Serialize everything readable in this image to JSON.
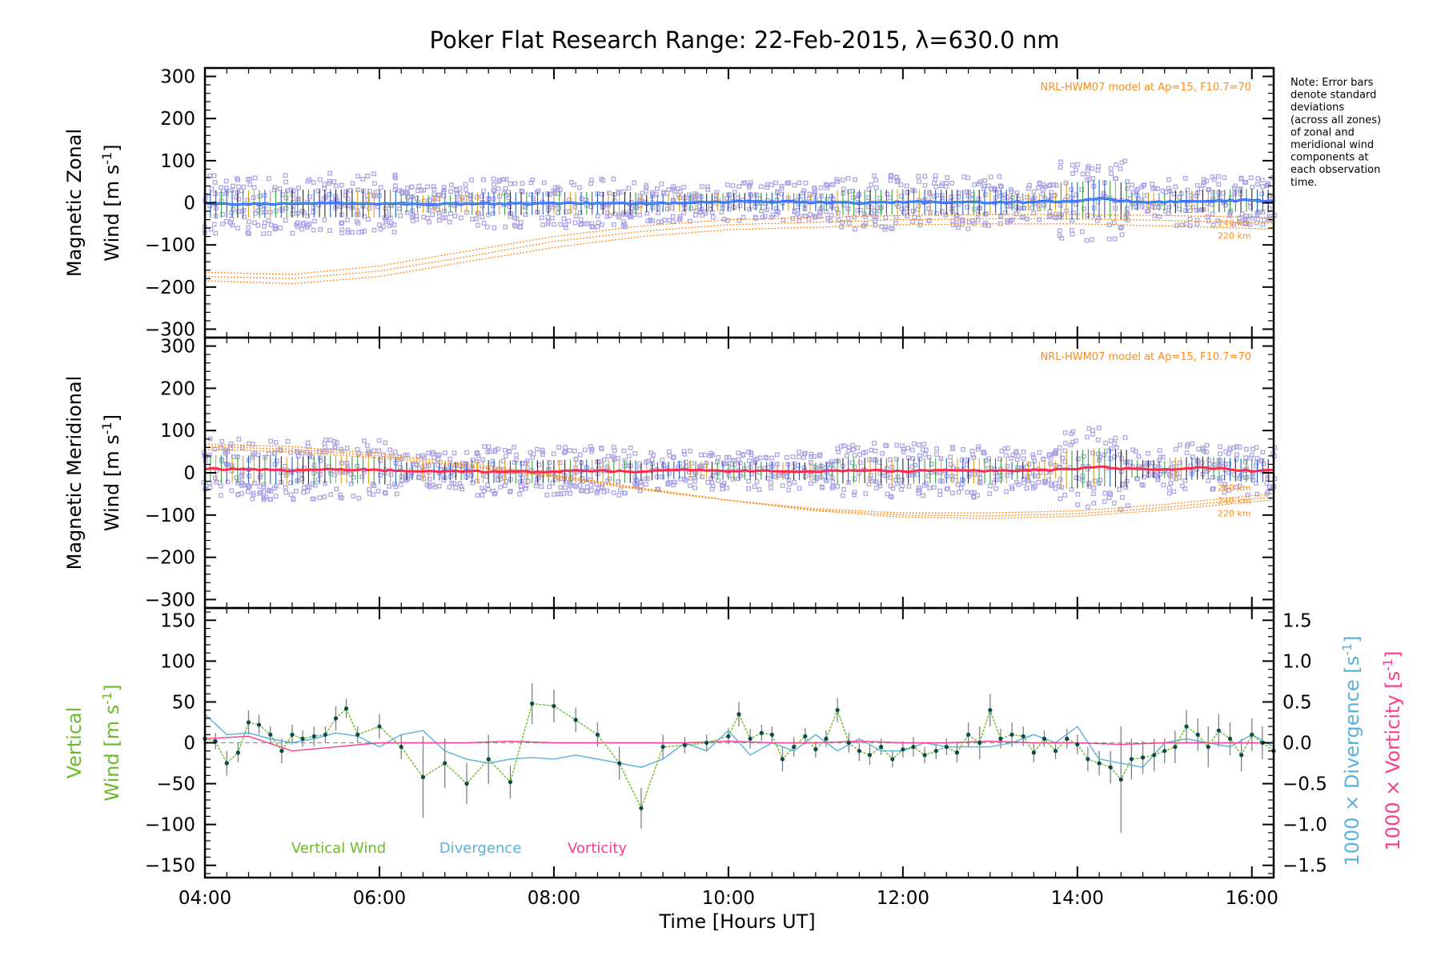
{
  "chart_data": {
    "title": "Poker Flat Research Range: 22-Feb-2015, λ=630.0 nm",
    "xlabel": "Time [Hours UT]",
    "x_ticks": [
      "04:00",
      "06:00",
      "08:00",
      "10:00",
      "12:00",
      "14:00",
      "16:00"
    ],
    "xlim": [
      4.0,
      16.25
    ],
    "note": [
      "Note: Error bars",
      "denote standard",
      "deviations",
      "(across all zones)",
      "of zonal and",
      "meridional wind",
      "components at",
      "each observation",
      "time."
    ],
    "colors": {
      "zonal": "#1f4fff",
      "zonal_light": "#4aa8ff",
      "meridional": "#ff2a4a",
      "model": "#ff8c1a",
      "zone_points": "#a9a2e3",
      "vertical": "#6bbb2a",
      "divergence": "#58b1da",
      "vorticity": "#ff3a8c",
      "error_bar": "#808080"
    },
    "panels": [
      {
        "id": "zonal",
        "type": "scatter",
        "ylabel_line1": "Magnetic Zonal",
        "ylabel_line2": "Wind [m s",
        "ylabel_sup": "-1",
        "ylabel_close": "]",
        "ylim": [
          -320,
          320
        ],
        "y_ticks": [
          300,
          200,
          100,
          0,
          -100,
          -200,
          -300
        ],
        "y_tick_labels": [
          "300",
          "200",
          "100",
          "0",
          "−100",
          "−200",
          "−300"
        ],
        "model_label": "NRL-HWM07 model at Ap=15, F10.7=70",
        "model_alt_labels": [
          "240 km",
          "220 km"
        ],
        "model_curves": [
          {
            "x": [
              4.0,
              5.0,
              6.0,
              7.0,
              8.0,
              9.0,
              10.0,
              11.0,
              12.0,
              13.0,
              14.0,
              15.0,
              16.2
            ],
            "y": [
              -165,
              -170,
              -150,
              -115,
              -80,
              -55,
              -40,
              -35,
              -30,
              -28,
              -28,
              -30,
              -35
            ]
          },
          {
            "x": [
              4.0,
              5.0,
              6.0,
              7.0,
              8.0,
              9.0,
              10.0,
              11.0,
              12.0,
              13.0,
              14.0,
              15.0,
              16.2
            ],
            "y": [
              -175,
              -180,
              -162,
              -128,
              -92,
              -68,
              -52,
              -46,
              -40,
              -38,
              -38,
              -42,
              -48
            ]
          },
          {
            "x": [
              4.0,
              5.0,
              6.0,
              7.0,
              8.0,
              9.0,
              10.0,
              11.0,
              12.0,
              13.0,
              14.0,
              15.0,
              16.2
            ],
            "y": [
              -185,
              -192,
              -175,
              -140,
              -106,
              -80,
              -64,
              -58,
              -52,
              -50,
              -50,
              -55,
              -62
            ]
          }
        ],
        "series": [
          {
            "name": "",
            "x": [
              4.0,
              4.5,
              5.0,
              5.5,
              6.0,
              6.5,
              7.0,
              7.5,
              8.0,
              8.5,
              9.0,
              9.5,
              10.0,
              10.5,
              11.0,
              11.5,
              12.0,
              12.5,
              13.0,
              13.5,
              14.0,
              14.25,
              14.5,
              15.0,
              15.5,
              16.0,
              16.25
            ],
            "y": [
              -2,
              -3,
              -2,
              -1,
              -2,
              -3,
              -2,
              -2,
              -1,
              -1,
              -2,
              0,
              2,
              3,
              1,
              0,
              2,
              1,
              1,
              2,
              4,
              10,
              4,
              2,
              4,
              6,
              3
            ]
          }
        ]
      },
      {
        "id": "meridional",
        "type": "scatter",
        "ylabel_line1": "Magnetic Meridional",
        "ylabel_line2": "Wind [m s",
        "ylabel_sup": "-1",
        "ylabel_close": "]",
        "ylim": [
          -320,
          320
        ],
        "y_ticks": [
          300,
          200,
          100,
          0,
          -100,
          -200,
          -300
        ],
        "y_tick_labels": [
          "300",
          "200",
          "100",
          "0",
          "−100",
          "−200",
          "−300"
        ],
        "model_label": "NRL-HWM07 model at Ap=15, F10.7=70",
        "model_alt_labels": [
          "260 km",
          "240 km",
          "220 km"
        ],
        "model_curves": [
          {
            "x": [
              4.0,
              5.0,
              6.0,
              7.0,
              8.0,
              9.0,
              10.0,
              11.0,
              12.0,
              13.0,
              14.0,
              15.0,
              16.2
            ],
            "y": [
              55,
              50,
              35,
              15,
              -10,
              -40,
              -65,
              -85,
              -95,
              -95,
              -90,
              -75,
              -50
            ]
          },
          {
            "x": [
              4.0,
              5.0,
              6.0,
              7.0,
              8.0,
              9.0,
              10.0,
              11.0,
              12.0,
              13.0,
              14.0,
              15.0,
              16.2
            ],
            "y": [
              62,
              56,
              40,
              18,
              -8,
              -38,
              -65,
              -88,
              -100,
              -102,
              -97,
              -82,
              -58
            ]
          },
          {
            "x": [
              4.0,
              5.0,
              6.0,
              7.0,
              8.0,
              9.0,
              10.0,
              11.0,
              12.0,
              13.0,
              14.0,
              15.0,
              16.2
            ],
            "y": [
              68,
              62,
              45,
              22,
              -5,
              -36,
              -65,
              -90,
              -105,
              -108,
              -103,
              -88,
              -65
            ]
          }
        ],
        "series": [
          {
            "name": "",
            "x": [
              4.0,
              4.5,
              5.0,
              5.5,
              6.0,
              6.5,
              7.0,
              7.5,
              8.0,
              8.5,
              9.0,
              9.5,
              10.0,
              10.5,
              11.0,
              11.5,
              12.0,
              12.5,
              13.0,
              13.5,
              14.0,
              14.25,
              14.5,
              15.0,
              15.5,
              16.0,
              16.25
            ],
            "y": [
              10,
              8,
              5,
              8,
              6,
              3,
              4,
              2,
              3,
              5,
              2,
              8,
              4,
              5,
              3,
              6,
              4,
              5,
              4,
              6,
              8,
              14,
              10,
              8,
              12,
              4,
              6
            ]
          }
        ]
      },
      {
        "id": "vertical",
        "type": "line",
        "ylabel_line1": "Vertical",
        "ylabel_line2": "Wind [m s",
        "ylabel_sup": "-1",
        "ylabel_close": "]",
        "ylim": [
          -165,
          165
        ],
        "y_ticks": [
          150,
          100,
          50,
          0,
          -50,
          -100,
          -150
        ],
        "y_tick_labels": [
          "150",
          "100",
          "50",
          "0",
          "−50",
          "−100",
          "−150"
        ],
        "ylim_right": [
          -1.65,
          1.65
        ],
        "y_ticks_right": [
          1.5,
          1.0,
          0.5,
          0.0,
          -0.5,
          -1.0,
          -1.5
        ],
        "y_tick_labels_right": [
          "1.5",
          "1.0",
          "0.5",
          "0.0",
          "−0.5",
          "−1.0",
          "−1.5"
        ],
        "ylabel_right_1": "1000 × Divergence [s",
        "ylabel_right_2": "1000 × Vorticity [s",
        "ylabel_right_sup": "-1",
        "ylabel_right_close": "]",
        "legend": [
          "Vertical Wind",
          "Divergence",
          "Vorticity"
        ],
        "vertical_wind": {
          "x": [
            4.0,
            4.12,
            4.25,
            4.38,
            4.5,
            4.62,
            4.75,
            4.88,
            5.0,
            5.12,
            5.25,
            5.38,
            5.5,
            5.62,
            5.75,
            6.0,
            6.25,
            6.5,
            6.75,
            7.0,
            7.25,
            7.5,
            7.75,
            8.0,
            8.25,
            8.5,
            8.75,
            9.0,
            9.25,
            9.5,
            9.75,
            10.0,
            10.12,
            10.25,
            10.38,
            10.5,
            10.62,
            10.75,
            10.88,
            11.0,
            11.12,
            11.25,
            11.38,
            11.5,
            11.62,
            11.75,
            11.88,
            12.0,
            12.12,
            12.25,
            12.38,
            12.5,
            12.62,
            12.75,
            12.88,
            13.0,
            13.12,
            13.25,
            13.38,
            13.5,
            13.62,
            13.75,
            13.88,
            14.0,
            14.12,
            14.25,
            14.38,
            14.5,
            14.62,
            14.75,
            14.88,
            15.0,
            15.12,
            15.25,
            15.38,
            15.5,
            15.62,
            15.75,
            15.88,
            16.0,
            16.12,
            16.25
          ],
          "y": [
            5,
            2,
            -25,
            -12,
            25,
            22,
            10,
            -10,
            10,
            5,
            8,
            10,
            30,
            42,
            10,
            20,
            -5,
            -42,
            -25,
            -50,
            -20,
            -48,
            48,
            45,
            28,
            10,
            -25,
            -80,
            -5,
            -3,
            0,
            8,
            35,
            5,
            12,
            10,
            -20,
            -5,
            8,
            -8,
            5,
            40,
            0,
            -10,
            -15,
            -5,
            -20,
            -8,
            -5,
            -15,
            -10,
            -5,
            -12,
            10,
            0,
            40,
            5,
            10,
            8,
            -12,
            5,
            -10,
            5,
            -2,
            -20,
            -25,
            -30,
            -45,
            -20,
            -18,
            -15,
            -10,
            -5,
            20,
            10,
            -5,
            15,
            5,
            -15,
            10,
            0,
            -10
          ],
          "err": [
            15,
            10,
            15,
            12,
            15,
            12,
            10,
            15,
            12,
            10,
            12,
            10,
            15,
            12,
            10,
            15,
            15,
            50,
            30,
            25,
            30,
            20,
            25,
            20,
            15,
            15,
            20,
            25,
            15,
            10,
            10,
            10,
            15,
            12,
            10,
            10,
            15,
            12,
            10,
            10,
            10,
            15,
            12,
            12,
            12,
            10,
            10,
            10,
            12,
            10,
            10,
            10,
            12,
            15,
            20,
            20,
            12,
            15,
            12,
            12,
            10,
            10,
            12,
            12,
            15,
            15,
            20,
            65,
            25,
            20,
            20,
            15,
            20,
            20,
            20,
            25,
            20,
            20,
            20,
            20,
            20,
            15
          ]
        },
        "divergence": {
          "x": [
            4.0,
            4.25,
            4.5,
            4.75,
            5.0,
            5.25,
            5.5,
            5.75,
            6.0,
            6.25,
            6.5,
            6.75,
            7.0,
            7.25,
            7.5,
            7.75,
            8.0,
            8.25,
            8.5,
            8.75,
            9.0,
            9.25,
            9.5,
            9.75,
            10.0,
            10.25,
            10.5,
            10.75,
            11.0,
            11.25,
            11.5,
            11.75,
            12.0,
            12.25,
            12.5,
            12.75,
            13.0,
            13.25,
            13.5,
            13.75,
            14.0,
            14.25,
            14.5,
            14.75,
            15.0,
            15.25,
            15.5,
            15.75,
            16.0,
            16.25
          ],
          "y": [
            0.35,
            0.1,
            0.12,
            0.05,
            0.0,
            0.05,
            0.12,
            0.08,
            -0.05,
            0.1,
            0.15,
            -0.1,
            -0.2,
            -0.25,
            -0.2,
            -0.18,
            -0.2,
            -0.15,
            -0.2,
            -0.25,
            -0.3,
            -0.2,
            0.0,
            -0.1,
            0.15,
            -0.15,
            0.0,
            -0.1,
            0.1,
            -0.1,
            0.05,
            -0.1,
            -0.1,
            0.0,
            -0.05,
            -0.05,
            -0.05,
            0.0,
            0.1,
            0.0,
            0.2,
            -0.2,
            -0.25,
            -0.3,
            0.0,
            0.05,
            0.0,
            -0.05,
            0.1,
            -0.05
          ]
        },
        "vorticity": {
          "x": [
            4.0,
            4.5,
            5.0,
            5.5,
            6.0,
            6.5,
            7.0,
            7.5,
            8.0,
            8.5,
            9.0,
            9.5,
            10.0,
            10.5,
            11.0,
            11.5,
            12.0,
            12.5,
            13.0,
            13.5,
            14.0,
            14.5,
            15.0,
            15.5,
            16.0,
            16.25
          ],
          "y": [
            0.05,
            0.08,
            -0.1,
            -0.05,
            0.0,
            0.0,
            0.0,
            0.02,
            0.0,
            0.0,
            0.0,
            0.0,
            0.02,
            0.0,
            0.0,
            0.02,
            0.0,
            0.0,
            0.02,
            0.0,
            0.0,
            -0.02,
            0.0,
            0.0,
            0.0,
            0.0
          ]
        }
      }
    ]
  }
}
